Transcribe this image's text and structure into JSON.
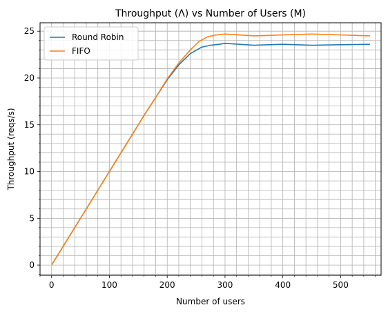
{
  "chart_data": {
    "type": "line",
    "title": "Throughput (Λ) vs Number of Users (M)",
    "xlabel": "Number of users",
    "ylabel": "Throughput (reqs/s)",
    "xlim": [
      -20,
      570
    ],
    "ylim": [
      -1.1,
      25.9
    ],
    "xticks": [
      0,
      100,
      200,
      300,
      400,
      500
    ],
    "yticks": [
      0,
      5,
      10,
      15,
      20,
      25
    ],
    "xtick_labels": [
      "0",
      "100",
      "200",
      "300",
      "400",
      "500"
    ],
    "ytick_labels": [
      "0",
      "5",
      "10",
      "15",
      "20",
      "25"
    ],
    "grid": true,
    "minor_grid": true,
    "legend_position": "upper-left",
    "series": [
      {
        "name": "Round Robin",
        "color": "#1f77b4",
        "x": [
          1,
          20,
          40,
          60,
          80,
          100,
          120,
          140,
          160,
          180,
          200,
          220,
          240,
          260,
          275,
          290,
          300,
          350,
          400,
          450,
          500,
          550
        ],
        "y": [
          0.1,
          2.0,
          4.0,
          6.0,
          8.0,
          10.0,
          12.0,
          14.0,
          16.0,
          17.9,
          19.8,
          21.4,
          22.6,
          23.3,
          23.5,
          23.6,
          23.7,
          23.5,
          23.6,
          23.5,
          23.55,
          23.6
        ]
      },
      {
        "name": "FIFO",
        "color": "#ff7f0e",
        "x": [
          1,
          20,
          40,
          60,
          80,
          100,
          120,
          140,
          160,
          180,
          200,
          220,
          240,
          255,
          270,
          285,
          300,
          350,
          400,
          450,
          500,
          550
        ],
        "y": [
          0.1,
          2.0,
          4.0,
          6.0,
          8.0,
          10.0,
          12.0,
          14.0,
          16.0,
          17.9,
          19.9,
          21.6,
          23.0,
          23.9,
          24.4,
          24.6,
          24.7,
          24.5,
          24.6,
          24.7,
          24.6,
          24.5
        ]
      }
    ]
  }
}
